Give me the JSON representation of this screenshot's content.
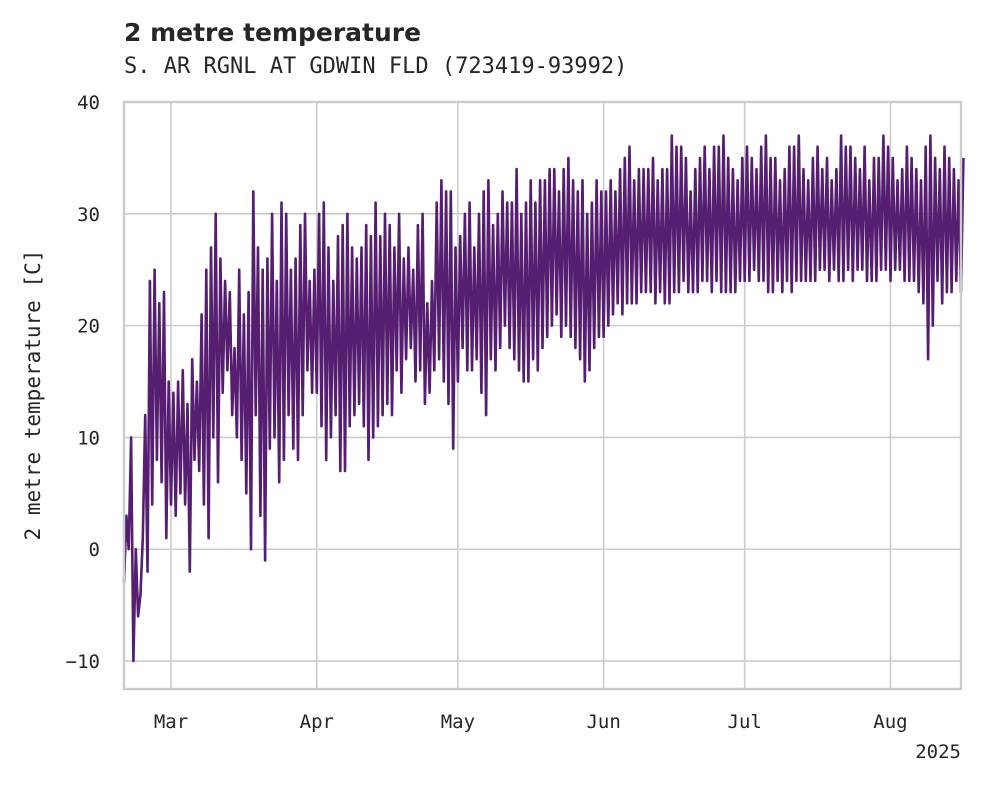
{
  "chart_data": {
    "type": "line",
    "title": "2 metre temperature",
    "subtitle": "S. AR RGNL AT GDWIN FLD (723419-93992)",
    "ylabel": "2 metre temperature [C]",
    "xlabel": "",
    "year_label": "2025",
    "x_range": [
      "2025-02-19",
      "2025-08-16"
    ],
    "ylim": [
      -12.5,
      40
    ],
    "yticks": [
      -10,
      0,
      10,
      20,
      30,
      40
    ],
    "ytick_labels": [
      "−10",
      "0",
      "10",
      "20",
      "30",
      "40"
    ],
    "xticks": [
      {
        "date": "2025-03-01",
        "label": "Mar"
      },
      {
        "date": "2025-04-01",
        "label": "Apr"
      },
      {
        "date": "2025-05-01",
        "label": "May"
      },
      {
        "date": "2025-06-01",
        "label": "Jun"
      },
      {
        "date": "2025-07-01",
        "label": "Jul"
      },
      {
        "date": "2025-08-01",
        "label": "Aug"
      }
    ],
    "grid": true,
    "line_color": "#561e70",
    "series": [
      {
        "x": [
          "2025-02-19",
          "2025-02-20",
          "2025-02-21",
          "2025-02-22",
          "2025-02-23",
          "2025-02-24",
          "2025-02-25",
          "2025-02-26",
          "2025-02-27",
          "2025-02-28",
          "2025-03-01",
          "2025-03-02",
          "2025-03-03",
          "2025-03-04",
          "2025-03-05",
          "2025-03-06",
          "2025-03-07",
          "2025-03-08",
          "2025-03-09",
          "2025-03-10",
          "2025-03-11",
          "2025-03-12",
          "2025-03-13",
          "2025-03-14",
          "2025-03-15",
          "2025-03-16",
          "2025-03-17",
          "2025-03-18",
          "2025-03-19",
          "2025-03-20",
          "2025-03-21",
          "2025-03-22",
          "2025-03-23",
          "2025-03-24",
          "2025-03-25",
          "2025-03-26",
          "2025-03-27",
          "2025-03-28",
          "2025-03-29",
          "2025-03-30",
          "2025-03-31",
          "2025-04-01",
          "2025-04-02",
          "2025-04-03",
          "2025-04-04",
          "2025-04-05",
          "2025-04-06",
          "2025-04-07",
          "2025-04-08",
          "2025-04-09",
          "2025-04-10",
          "2025-04-11",
          "2025-04-12",
          "2025-04-13",
          "2025-04-14",
          "2025-04-15",
          "2025-04-16",
          "2025-04-17",
          "2025-04-18",
          "2025-04-19",
          "2025-04-20",
          "2025-04-21",
          "2025-04-22",
          "2025-04-23",
          "2025-04-24",
          "2025-04-25",
          "2025-04-26",
          "2025-04-27",
          "2025-04-28",
          "2025-04-29",
          "2025-04-30",
          "2025-05-01",
          "2025-05-02",
          "2025-05-03",
          "2025-05-04",
          "2025-05-05",
          "2025-05-06",
          "2025-05-07",
          "2025-05-08",
          "2025-05-09",
          "2025-05-10",
          "2025-05-11",
          "2025-05-12",
          "2025-05-13",
          "2025-05-14",
          "2025-05-15",
          "2025-05-16",
          "2025-05-17",
          "2025-05-18",
          "2025-05-19",
          "2025-05-20",
          "2025-05-21",
          "2025-05-22",
          "2025-05-23",
          "2025-05-24",
          "2025-05-25",
          "2025-05-26",
          "2025-05-27",
          "2025-05-28",
          "2025-05-29",
          "2025-05-30",
          "2025-05-31",
          "2025-06-01",
          "2025-06-02",
          "2025-06-03",
          "2025-06-04",
          "2025-06-05",
          "2025-06-06",
          "2025-06-07",
          "2025-06-08",
          "2025-06-09",
          "2025-06-10",
          "2025-06-11",
          "2025-06-12",
          "2025-06-13",
          "2025-06-14",
          "2025-06-15",
          "2025-06-16",
          "2025-06-17",
          "2025-06-18",
          "2025-06-19",
          "2025-06-20",
          "2025-06-21",
          "2025-06-22",
          "2025-06-23",
          "2025-06-24",
          "2025-06-25",
          "2025-06-26",
          "2025-06-27",
          "2025-06-28",
          "2025-06-29",
          "2025-06-30",
          "2025-07-01",
          "2025-07-02",
          "2025-07-03",
          "2025-07-04",
          "2025-07-05",
          "2025-07-06",
          "2025-07-07",
          "2025-07-08",
          "2025-07-09",
          "2025-07-10",
          "2025-07-11",
          "2025-07-12",
          "2025-07-13",
          "2025-07-14",
          "2025-07-15",
          "2025-07-16",
          "2025-07-17",
          "2025-07-18",
          "2025-07-19",
          "2025-07-20",
          "2025-07-21",
          "2025-07-22",
          "2025-07-23",
          "2025-07-24",
          "2025-07-25",
          "2025-07-26",
          "2025-07-27",
          "2025-07-28",
          "2025-07-29",
          "2025-07-30",
          "2025-07-31",
          "2025-08-01",
          "2025-08-02",
          "2025-08-03",
          "2025-08-04",
          "2025-08-05",
          "2025-08-06",
          "2025-08-07",
          "2025-08-08",
          "2025-08-09",
          "2025-08-10",
          "2025-08-11",
          "2025-08-12",
          "2025-08-13",
          "2025-08-14",
          "2025-08-15",
          "2025-08-16"
        ],
        "min": [
          -3,
          0,
          -10,
          -6,
          1,
          -2,
          4,
          8,
          6,
          1,
          4,
          3,
          5,
          4,
          -2,
          8,
          7,
          4,
          1,
          10,
          6,
          14,
          16,
          12,
          10,
          8,
          5,
          0,
          12,
          3,
          -1,
          9,
          10,
          6,
          8,
          12,
          9,
          8,
          12,
          16,
          14,
          14,
          11,
          8,
          10,
          12,
          7,
          7,
          11,
          12,
          13,
          11,
          8,
          10,
          11,
          12,
          13,
          12,
          16,
          14,
          17,
          18,
          15,
          16,
          13,
          14,
          16,
          17,
          15,
          13,
          9,
          15,
          18,
          16,
          16,
          17,
          14,
          12,
          17,
          16,
          18,
          20,
          18,
          17,
          16,
          15,
          15,
          17,
          16,
          18,
          19,
          20,
          21,
          19,
          20,
          19,
          18,
          17,
          15,
          16,
          18,
          19,
          19,
          20,
          21,
          22,
          21,
          22,
          22,
          22,
          23,
          23,
          23,
          22,
          23,
          22,
          22,
          23,
          23,
          24,
          23,
          23,
          23,
          24,
          24,
          23,
          24,
          23,
          23,
          23,
          23,
          24,
          24,
          24,
          25,
          24,
          24,
          23,
          23,
          24,
          23,
          24,
          23,
          24,
          24,
          24,
          24,
          24,
          25,
          25,
          24,
          25,
          24,
          24,
          25,
          24,
          25,
          25,
          24,
          24,
          24,
          25,
          25,
          24,
          25,
          25,
          24,
          24,
          24,
          23,
          22,
          17,
          20,
          24,
          22,
          23,
          23,
          24,
          23,
          23,
          23
        ],
        "max": [
          3,
          10,
          0,
          -4,
          12,
          24,
          25,
          22,
          23,
          15,
          14,
          15,
          16,
          13,
          17,
          15,
          21,
          25,
          27,
          30,
          26,
          24,
          23,
          18,
          25,
          21,
          23,
          32,
          27,
          25,
          26,
          30,
          24,
          31,
          30,
          25,
          26,
          29,
          30,
          24,
          25,
          30,
          31,
          27,
          24,
          28,
          29,
          30,
          27,
          26,
          27,
          29,
          28,
          31,
          28,
          30,
          29,
          27,
          30,
          26,
          27,
          25,
          29,
          30,
          22,
          24,
          31,
          33,
          32,
          32,
          27,
          28,
          30,
          31,
          27,
          30,
          32,
          33,
          29,
          30,
          32,
          31,
          31,
          34,
          30,
          31,
          33,
          31,
          33,
          33,
          34,
          34,
          32,
          34,
          35,
          33,
          32,
          33,
          30,
          31,
          33,
          32,
          32,
          33,
          32,
          34,
          35,
          36,
          33,
          34,
          34,
          34,
          35,
          33,
          34,
          34,
          37,
          36,
          36,
          35,
          32,
          34,
          35,
          36,
          34,
          36,
          36,
          37,
          35,
          34,
          33,
          35,
          36,
          35,
          34,
          36,
          37,
          35,
          35,
          33,
          34,
          36,
          36,
          37,
          34,
          33,
          35,
          36,
          34,
          35,
          33,
          34,
          37,
          36,
          36,
          35,
          34,
          36,
          33,
          35,
          35,
          37,
          36,
          35,
          33,
          34,
          36,
          35,
          34,
          33,
          36,
          37,
          35,
          34,
          36,
          35,
          34,
          33,
          35,
          34,
          35
        ]
      }
    ]
  }
}
